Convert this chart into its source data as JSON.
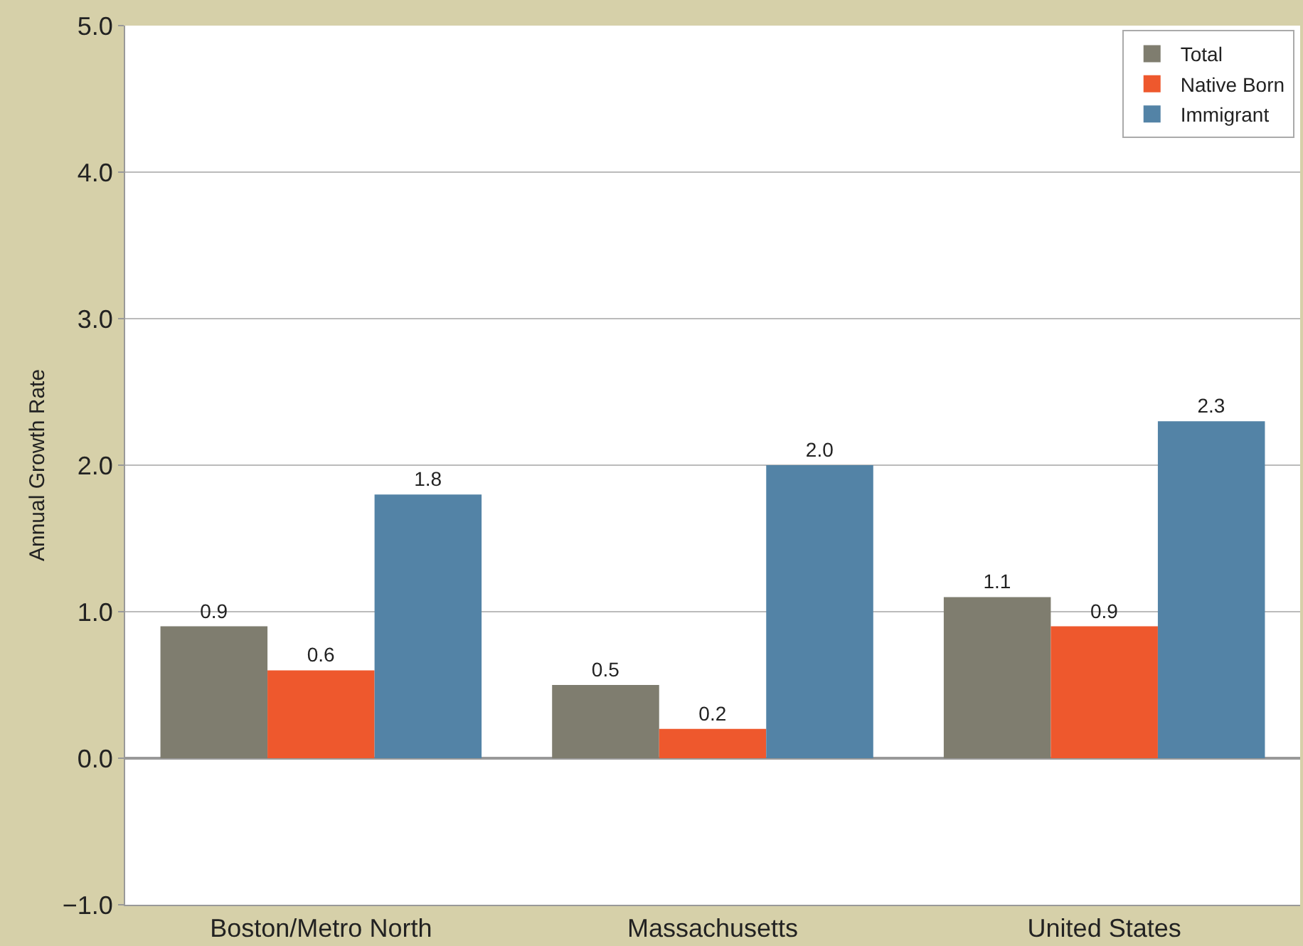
{
  "chart_data": {
    "type": "bar",
    "ylabel": "Annual Growth Rate",
    "categories": [
      "Boston/Metro North",
      "Massachusetts",
      "United States"
    ],
    "series": [
      {
        "name": "Total",
        "color": "#7f7d6f",
        "values": [
          0.9,
          0.5,
          1.1
        ]
      },
      {
        "name": "Native Born",
        "color": "#ee582d",
        "values": [
          0.6,
          0.2,
          0.9
        ]
      },
      {
        "name": "Immigrant",
        "color": "#5383a6",
        "values": [
          1.8,
          2.0,
          2.3
        ],
        "value_labels": [
          "1.8",
          "2.0",
          "2.3"
        ]
      }
    ],
    "ylim": [
      -1,
      5
    ],
    "yticks": [
      {
        "value": -1,
        "label": "−1.0"
      },
      {
        "value": 0,
        "label": "0.0"
      },
      {
        "value": 1,
        "label": "1.0"
      },
      {
        "value": 2,
        "label": "2.0"
      },
      {
        "value": 3,
        "label": "3.0"
      },
      {
        "value": 4,
        "label": "4.0"
      },
      {
        "value": 5,
        "label": "5.0"
      }
    ],
    "grid": "y",
    "legend": "top right",
    "data_labels": true
  }
}
